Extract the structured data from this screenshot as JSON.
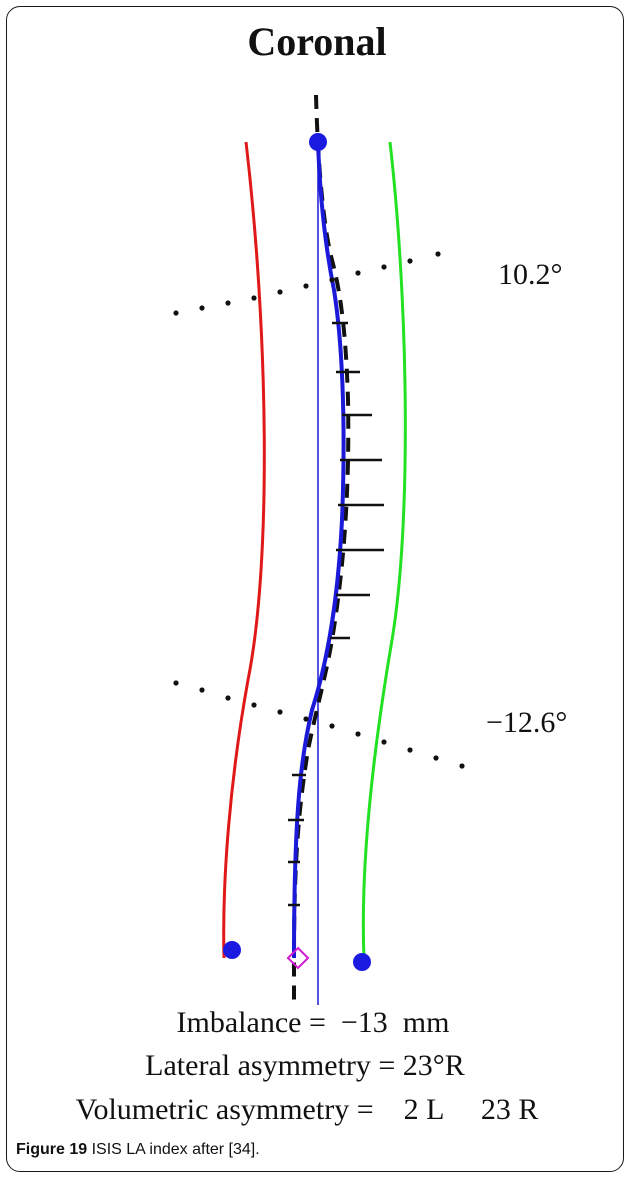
{
  "figure": {
    "title": "Coronal",
    "angle_top": "10.2°",
    "angle_bottom": "−12.6°",
    "imbalance": "Imbalance =  −13  mm",
    "lateral_asymmetry": "Lateral asymmetry = 23°R",
    "volumetric_asymmetry": "Volumetric asymmetry =    2 L     23 R",
    "caption_label": "Figure 19",
    "caption_text": " ISIS LA index after [34]."
  },
  "colors": {
    "left_curve": "#e01818",
    "right_curve": "#22e022",
    "spine_curve": "#1a1ad8",
    "marker": "#1a1ae0",
    "pelvis_marker": "#d21ad2"
  }
}
